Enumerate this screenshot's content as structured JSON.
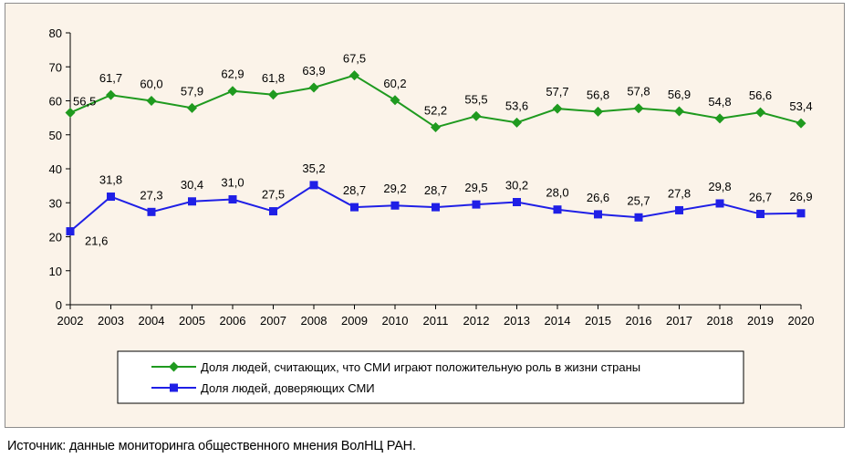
{
  "chart_data": {
    "type": "line",
    "categories": [
      "2002",
      "2003",
      "2004",
      "2005",
      "2006",
      "2007",
      "2008",
      "2009",
      "2010",
      "2011",
      "2012",
      "2013",
      "2014",
      "2015",
      "2016",
      "2017",
      "2018",
      "2019",
      "2020"
    ],
    "ylim": [
      0,
      80
    ],
    "yticks": [
      0,
      10,
      20,
      30,
      40,
      50,
      60,
      70,
      80
    ],
    "series": [
      {
        "name": "Доля людей, считающих, что СМИ играют положительную роль в жизни страны",
        "color": "#1f9a1f",
        "marker": "diamond",
        "values": [
          56.5,
          61.7,
          60.0,
          57.9,
          62.9,
          61.8,
          63.9,
          67.5,
          60.2,
          52.2,
          55.5,
          53.6,
          57.7,
          56.8,
          57.8,
          56.9,
          54.8,
          56.6,
          53.4
        ],
        "labels": [
          "56,5",
          "61,7",
          "60,0",
          "57,9",
          "62,9",
          "61,8",
          "63,9",
          "67,5",
          "60,2",
          "52,2",
          "55,5",
          "53,6",
          "57,7",
          "56,8",
          "57,8",
          "56,9",
          "54,8",
          "56,6",
          "53,4"
        ]
      },
      {
        "name": "Доля людей, доверяющих СМИ",
        "color": "#1f1fe6",
        "marker": "square",
        "values": [
          21.6,
          31.8,
          27.3,
          30.4,
          31.0,
          27.5,
          35.2,
          28.7,
          29.2,
          28.7,
          29.5,
          30.2,
          28.0,
          26.6,
          25.7,
          27.8,
          29.8,
          26.7,
          26.9
        ],
        "labels": [
          "21,6",
          "31,8",
          "27,3",
          "30,4",
          "31,0",
          "27,5",
          "35,2",
          "28,7",
          "29,2",
          "28,7",
          "29,5",
          "30,2",
          "28,0",
          "26,6",
          "25,7",
          "27,8",
          "29,8",
          "26,7",
          "26,9"
        ]
      }
    ],
    "legend_position": "bottom"
  },
  "source_text": "Источник: данные мониторинга общественного мнения ВолНЦ РАН."
}
